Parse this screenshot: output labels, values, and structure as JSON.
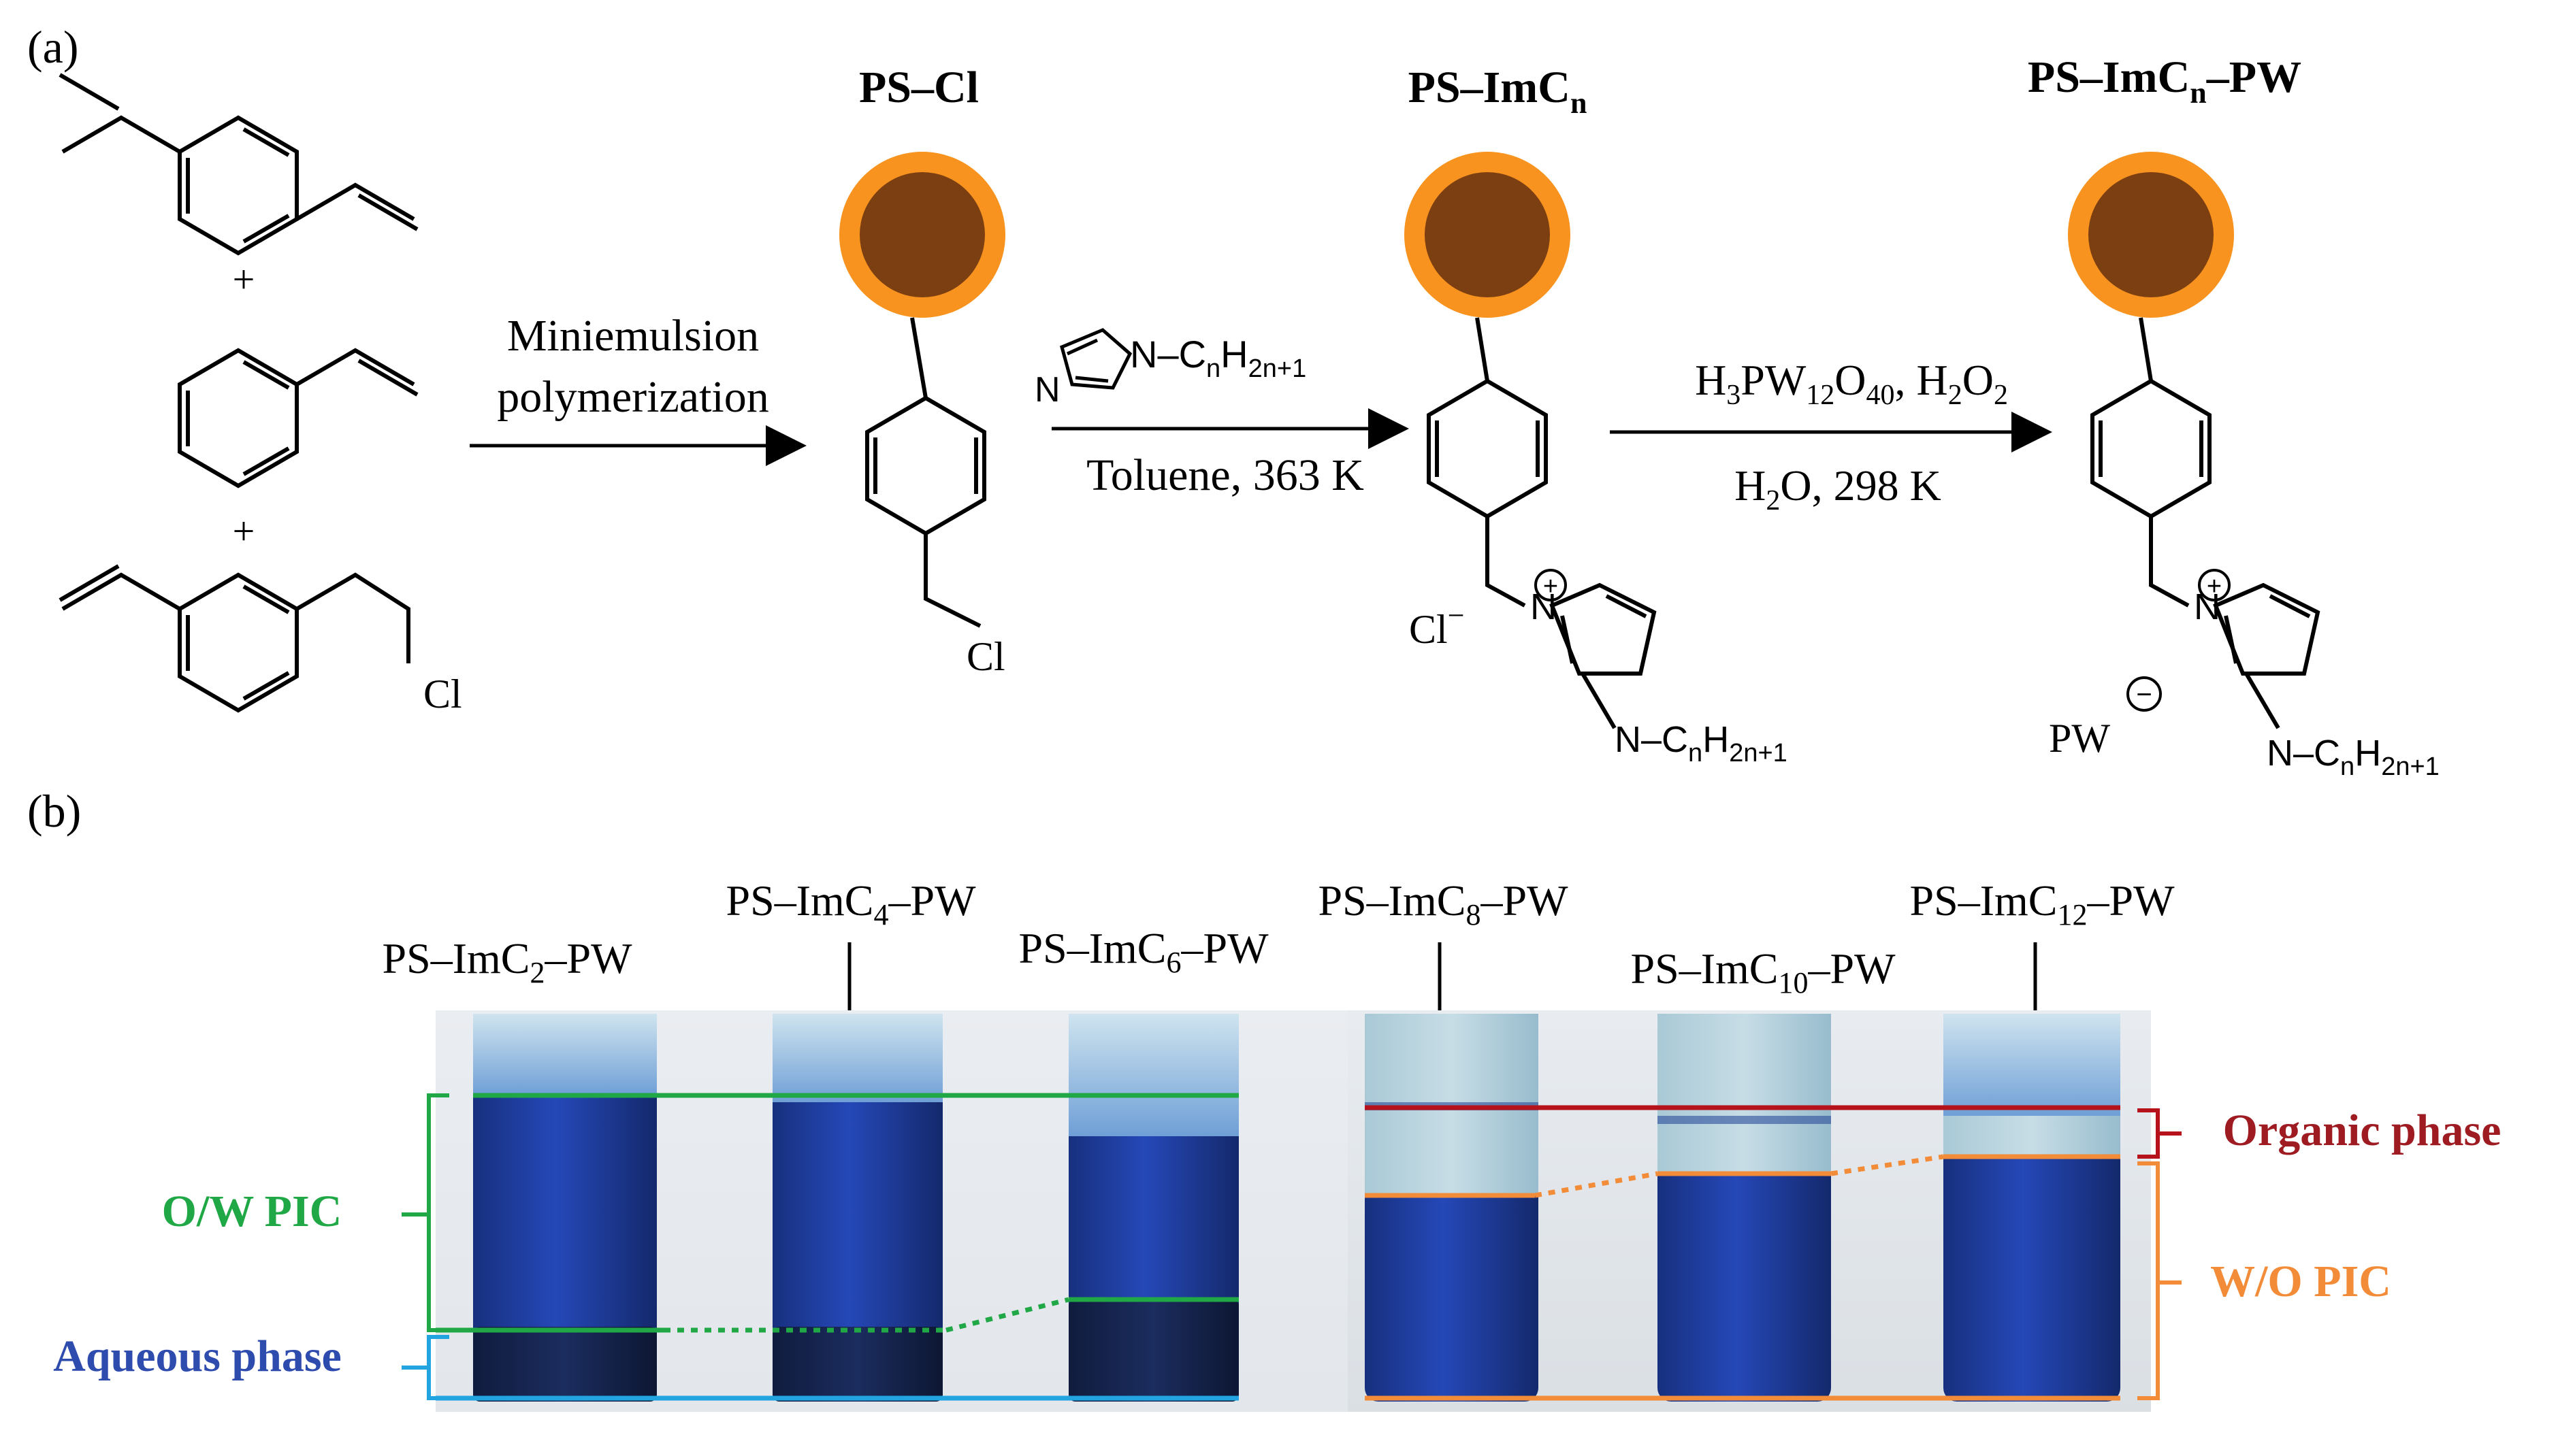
{
  "panel_a": {
    "label": "(a)",
    "plus_1": "+",
    "plus_2": "+",
    "monomer_cl": "Cl",
    "step1": {
      "line1": "Miniemulsion",
      "line2": "polymerization"
    },
    "product1": {
      "title": "PS–Cl",
      "cl": "Cl"
    },
    "step2": {
      "reagent_prefix": "N–C",
      "reagent_sub_n": "n",
      "reagent_h": "H",
      "reagent_sub_2n1": "2n+1",
      "imidazole_n": "N",
      "condition": "Toluene, 363 K"
    },
    "product2": {
      "title_main": "PS–ImC",
      "title_sub": "n",
      "counterion": "Cl",
      "counterion_charge": "−",
      "cation_n": "N",
      "ring_n": "N",
      "chain_c": "C",
      "chain_sub_n": "n",
      "chain_h": "H",
      "chain_sub_2n1": "2n+1",
      "plus_charge": "+"
    },
    "step3": {
      "r1": "H",
      "r1_sub": "3",
      "r2": "PW",
      "r2_sub": "12",
      "r3": "O",
      "r3_sub": "40",
      "r4": ", H",
      "r4_sub": "2",
      "r5": "O",
      "r5_sub": "2",
      "cond_h": "H",
      "cond_sub": "2",
      "cond_rest": "O, 298 K"
    },
    "product3": {
      "title_main": "PS–ImC",
      "title_sub": "n",
      "title_end": "–PW",
      "counterion": "PW",
      "counterion_charge": "−",
      "cation_n": "N",
      "ring_n": "N",
      "chain_c": "C",
      "chain_sub_n": "n",
      "chain_h": "H",
      "chain_sub_2n1": "2n+1",
      "plus_charge": "+"
    }
  },
  "panel_b": {
    "label": "(b)",
    "tubes": [
      {
        "prefix": "PS–ImC",
        "sub": "2",
        "suffix": "–PW"
      },
      {
        "prefix": "PS–ImC",
        "sub": "4",
        "suffix": "–PW"
      },
      {
        "prefix": "PS–ImC",
        "sub": "6",
        "suffix": "–PW"
      },
      {
        "prefix": "PS–ImC",
        "sub": "8",
        "suffix": "–PW"
      },
      {
        "prefix": "PS–ImC",
        "sub": "10",
        "suffix": "–PW"
      },
      {
        "prefix": "PS–ImC",
        "sub": "12",
        "suffix": "–PW"
      }
    ],
    "labels": {
      "ow_pic": "O/W PIC",
      "aqueous": "Aqueous phase",
      "organic": "Organic phase",
      "wo_pic": "W/O PIC"
    }
  },
  "colors": {
    "sphere_outer": "#F7931E",
    "sphere_inner": "#7B3F12",
    "green": "#21A846",
    "cyan": "#22A4E0",
    "red": "#B5121B",
    "orange": "#F28C38",
    "aqueous_text": "#2E4BAE",
    "organic_text": "#9E1B22",
    "tube_blue": "#1E3FA8"
  }
}
